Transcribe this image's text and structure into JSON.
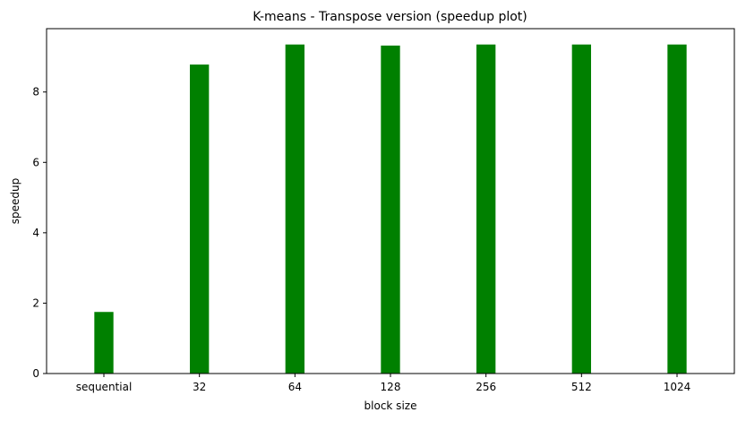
{
  "chart_data": {
    "type": "bar",
    "title": "K-means - Transpose version (speedup plot)",
    "xlabel": "block size",
    "ylabel": "speedup",
    "categories": [
      "sequential",
      "32",
      "64",
      "128",
      "256",
      "512",
      "1024"
    ],
    "values": [
      1.75,
      8.78,
      9.35,
      9.32,
      9.35,
      9.35,
      9.35
    ],
    "ylim": [
      0,
      9.8
    ],
    "yticks": [
      0,
      2,
      4,
      6,
      8
    ],
    "bar_color": "#008000",
    "grid": false,
    "legend": false
  }
}
